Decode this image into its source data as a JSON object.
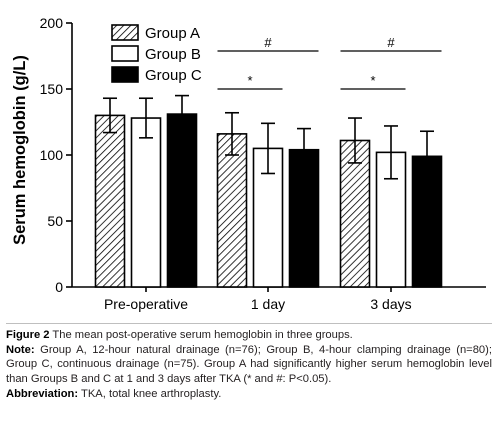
{
  "chart_data": {
    "type": "bar",
    "ylabel": "Serum hemoglobin (g/L)",
    "xlabel": "",
    "ylim": [
      0,
      200
    ],
    "yticks": [
      "0",
      "50",
      "100",
      "150",
      "200"
    ],
    "categories": [
      "Pre-operative",
      "1 day",
      "3 days"
    ],
    "series": [
      {
        "name": "Group A",
        "fill": "hatched",
        "values": [
          130,
          116,
          111
        ],
        "errors": [
          13,
          16,
          17
        ]
      },
      {
        "name": "Group B",
        "fill": "white",
        "values": [
          128,
          105,
          102
        ],
        "errors": [
          15,
          19,
          20
        ]
      },
      {
        "name": "Group C",
        "fill": "black",
        "values": [
          131,
          104,
          99
        ],
        "errors": [
          14,
          16,
          19
        ]
      }
    ],
    "legend": {
      "placement": "top-left",
      "entries": [
        "Group A",
        "Group B",
        "Group C"
      ]
    },
    "annotations": [
      {
        "category": "1 day",
        "symbol": "*",
        "from": "Group A",
        "to": "Group B",
        "level": 1
      },
      {
        "category": "1 day",
        "symbol": "#",
        "from": "Group A",
        "to": "Group C",
        "level": 2
      },
      {
        "category": "3 days",
        "symbol": "*",
        "from": "Group A",
        "to": "Group B",
        "level": 1
      },
      {
        "category": "3 days",
        "symbol": "#",
        "from": "Group A",
        "to": "Group C",
        "level": 2
      }
    ],
    "grid": false,
    "colors": {
      "bar_outline": "#000000",
      "solid": "#000000",
      "hollow": "#ffffff"
    }
  },
  "caption": {
    "figure_label": "Figure 2",
    "figure_text": " The mean post-operative serum hemoglobin in three groups.",
    "note_label": "Note:",
    "note_text": " Group A, 12-hour natural drainage (n=76); Group B, 4-hour clamping drainage (n=80); Group C, continuous drainage (n=75). Group A had significantly higher serum hemoglobin level than Groups B and C at 1 and 3 days after TKA (* and #: P<0.05).",
    "abbreviation_label": "Abbreviation:",
    "abbreviation_text": " TKA, total knee arthroplasty."
  }
}
